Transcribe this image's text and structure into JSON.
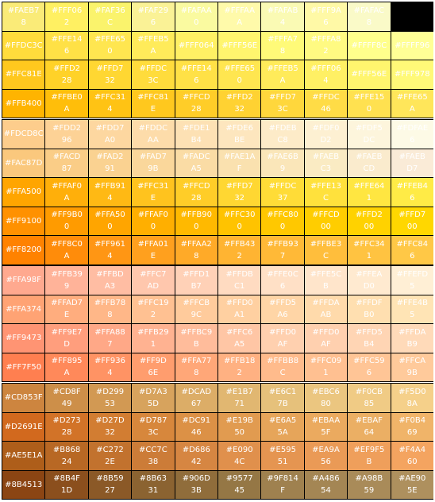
{
  "swatch_groups": [
    {
      "rows": [
        [
          "#FAEB78",
          "#FFF062",
          "#FAF36C",
          "#FAF296",
          "#FAFAA0",
          "#FFFAAA",
          "#FAFAB4",
          "#FFF9A6",
          "#FAFAC8"
        ],
        [
          "#FFDC3C",
          "#FFE146",
          "#FFE650",
          "#FFEB5A",
          "#FFF064",
          "#FFF56E",
          "#FFFA78",
          "#FFFA82",
          "#FFFF8C",
          "#FFFF96"
        ],
        [
          "#FFC81E",
          "#FFD228",
          "#FFD732",
          "#FFDC3C",
          "#FFE146",
          "#FFE650",
          "#FFEB5A",
          "#FFF064",
          "#FFF56E",
          "#FFF978"
        ],
        [
          "#FFB400",
          "#FFBE0A",
          "#FFC314",
          "#FFC81E",
          "#FFCD28",
          "#FFD232",
          "#FFD73C",
          "#FFDC46",
          "#FFE150",
          "#FFE65A"
        ]
      ],
      "colors": [
        [
          "#FAEB78",
          "#FFF062",
          "#FAF36C",
          "#FAF296",
          "#FAFAA0",
          "#FFFAAA",
          "#FAFAB4",
          "#FFF9A6",
          "#FAFAC8"
        ],
        [
          "#FFDC3C",
          "#FFE146",
          "#FFE650",
          "#FFEB5A",
          "#FFF064",
          "#FFF56E",
          "#FFFA78",
          "#FFFA82",
          "#FFFF8C",
          "#FFFF96"
        ],
        [
          "#FFC81E",
          "#FFD228",
          "#FFD732",
          "#FFDC3C",
          "#FFE146",
          "#FFE650",
          "#FFEB5A",
          "#FFF064",
          "#FFF56E",
          "#FFF978"
        ],
        [
          "#FFB400",
          "#FFBE0A",
          "#FFC314",
          "#FFC81E",
          "#FFCD28",
          "#FFD232",
          "#FFD73C",
          "#FFDC46",
          "#FFE150",
          "#FFE65A"
        ]
      ]
    },
    {
      "rows": [
        [
          "#FDCD8C",
          "#FDD296",
          "#FDD7A0",
          "#FDDCAA",
          "#FDE1B4",
          "#FDE6BE",
          "#FDEBC8",
          "#FDF0D2",
          "#FDF5DC",
          "#FDFAE6"
        ],
        [
          "#FAC87D",
          "#FACD87",
          "#FAD291",
          "#FAD79B",
          "#FADCA5",
          "#FAE1AF",
          "#FAE6B9",
          "#FAEBC3",
          "#FAEBCD",
          "#FAEBD7"
        ],
        [
          "#FFA500",
          "#FFAF0A",
          "#FFB914",
          "#FFC31E",
          "#FFCD28",
          "#FFD732",
          "#FFDC37",
          "#FFE13C",
          "#FFE641",
          "#FFEB46"
        ],
        [
          "#FF9100",
          "#FF9B00",
          "#FFA500",
          "#FFAF00",
          "#FFB900",
          "#FFC300",
          "#FFC800",
          "#FFCD00",
          "#FFD200",
          "#FFD700"
        ],
        [
          "#FF8200",
          "#FF8C0A",
          "#FF9614",
          "#FFA01E",
          "#FFAA28",
          "#FFB432",
          "#FFB937",
          "#FFBE3C",
          "#FFC341",
          "#FFC846"
        ]
      ],
      "colors": [
        [
          "#FDCD8C",
          "#FDD296",
          "#FDD7A0",
          "#FDDCAA",
          "#FDE1B4",
          "#FDE6BE",
          "#FDEBC8",
          "#FDF0D2",
          "#FDF5DC",
          "#FDFAE6"
        ],
        [
          "#FAC87D",
          "#FACD87",
          "#FAD291",
          "#FAD79B",
          "#FADCA5",
          "#FAE1AF",
          "#FAE6B9",
          "#FAEBC3",
          "#FAEBCD",
          "#FAEBD7"
        ],
        [
          "#FFA500",
          "#FFAF0A",
          "#FFB914",
          "#FFC31E",
          "#FFCD28",
          "#FFD732",
          "#FFDC37",
          "#FFE13C",
          "#FFE641",
          "#FFEB46"
        ],
        [
          "#FF9100",
          "#FF9B00",
          "#FFA500",
          "#FFAF00",
          "#FFB900",
          "#FFC300",
          "#FFC800",
          "#FFCD00",
          "#FFD200",
          "#FFD700"
        ],
        [
          "#FF8200",
          "#FF8C0A",
          "#FF9614",
          "#FFA01E",
          "#FFAA28",
          "#FFB432",
          "#FFB937",
          "#FFBE3C",
          "#FFC341",
          "#FFC846"
        ]
      ]
    },
    {
      "rows": [
        [
          "#FFA98F",
          "#FFB399",
          "#FFBDA3",
          "#FFC7AD",
          "#FFD1B7",
          "#FFDBC1",
          "#FFE0C6",
          "#FFE5CB",
          "#FFEAD0",
          "#FFEFD5"
        ],
        [
          "#FFA374",
          "#FFAD7E",
          "#FFB788",
          "#FFC192",
          "#FFCB9C",
          "#FFD0A1",
          "#FFD5A6",
          "#FFDAAB",
          "#FFDFB0",
          "#FFE4B5"
        ],
        [
          "#FF9473",
          "#FF9E7D",
          "#FFA887",
          "#FFB291",
          "#FFBC9B",
          "#FFC6A5",
          "#FFD0AF",
          "#FFD0AF",
          "#FFD5B4",
          "#FFDAB9"
        ],
        [
          "#FF7F50",
          "#FF895A",
          "#FF9364",
          "#FF9D6E",
          "#FFA778",
          "#FFB182",
          "#FFBB8C",
          "#FFC091",
          "#FFC596",
          "#FFCA9B"
        ]
      ],
      "colors": [
        [
          "#FFA98F",
          "#FFB399",
          "#FFBDA3",
          "#FFC7AD",
          "#FFD1B7",
          "#FFDBC1",
          "#FFE0C6",
          "#FFE5CB",
          "#FFEAD0",
          "#FFEFD5"
        ],
        [
          "#FFA374",
          "#FFAD7E",
          "#FFB788",
          "#FFC192",
          "#FFCB9C",
          "#FFD0A1",
          "#FFD5A6",
          "#FFDAAB",
          "#FFDFB0",
          "#FFE4B5"
        ],
        [
          "#FF9473",
          "#FF9E7D",
          "#FFA887",
          "#FFB291",
          "#FFBC9B",
          "#FFC6A5",
          "#FFD0AF",
          "#FFD0AF",
          "#FFD5B4",
          "#FFDAB9"
        ],
        [
          "#FF7F50",
          "#FF895A",
          "#FF9364",
          "#FF9D6E",
          "#FFA778",
          "#FFB182",
          "#FFBB8C",
          "#FFC091",
          "#FFC596",
          "#FFCA9B"
        ]
      ]
    },
    {
      "rows": [
        [
          "#CD853F",
          "#CD8F49",
          "#D29953",
          "#D7A35D",
          "#DCAD67",
          "#E1B771",
          "#E6C17B",
          "#EBC680",
          "#F0CB85",
          "#F5D08A"
        ],
        [
          "#D2691E",
          "#D27328",
          "#D27D32",
          "#D7873C",
          "#DC9146",
          "#E19B50",
          "#E6A55A",
          "#EBAA5F",
          "#EBAF64",
          "#F0B469"
        ],
        [
          "#AE5E1A",
          "#B86824",
          "#C2722E",
          "#CC7C38",
          "#D68642",
          "#E0904C",
          "#E59551",
          "#EA9A56",
          "#EF9F5B",
          "#F4A460"
        ],
        [
          "#8B4513",
          "#8B4F1D",
          "#8B5927",
          "#8B6331",
          "#906D3B",
          "#957745",
          "#9F814F",
          "#A48654",
          "#A98B59",
          "#AE905E"
        ]
      ],
      "colors": [
        [
          "#CD853F",
          "#CD8F49",
          "#D29953",
          "#D7A35D",
          "#DCAD67",
          "#E1B771",
          "#E6C17B",
          "#EBC680",
          "#F0CB85",
          "#F5D08A"
        ],
        [
          "#D2691E",
          "#D27328",
          "#D27D32",
          "#D7873C",
          "#DC9146",
          "#E19B50",
          "#E6A55A",
          "#EBAA5F",
          "#EBAF64",
          "#F0B469"
        ],
        [
          "#AE5E1A",
          "#B86824",
          "#C2722E",
          "#CC7C38",
          "#D68642",
          "#E0904C",
          "#E59551",
          "#EA9A56",
          "#EF9F5B",
          "#F4A460"
        ],
        [
          "#8B4513",
          "#8B4F1D",
          "#8B5927",
          "#8B6331",
          "#906D3B",
          "#957745",
          "#9F814F",
          "#A48654",
          "#A98B59",
          "#AE905E"
        ]
      ]
    }
  ]
}
